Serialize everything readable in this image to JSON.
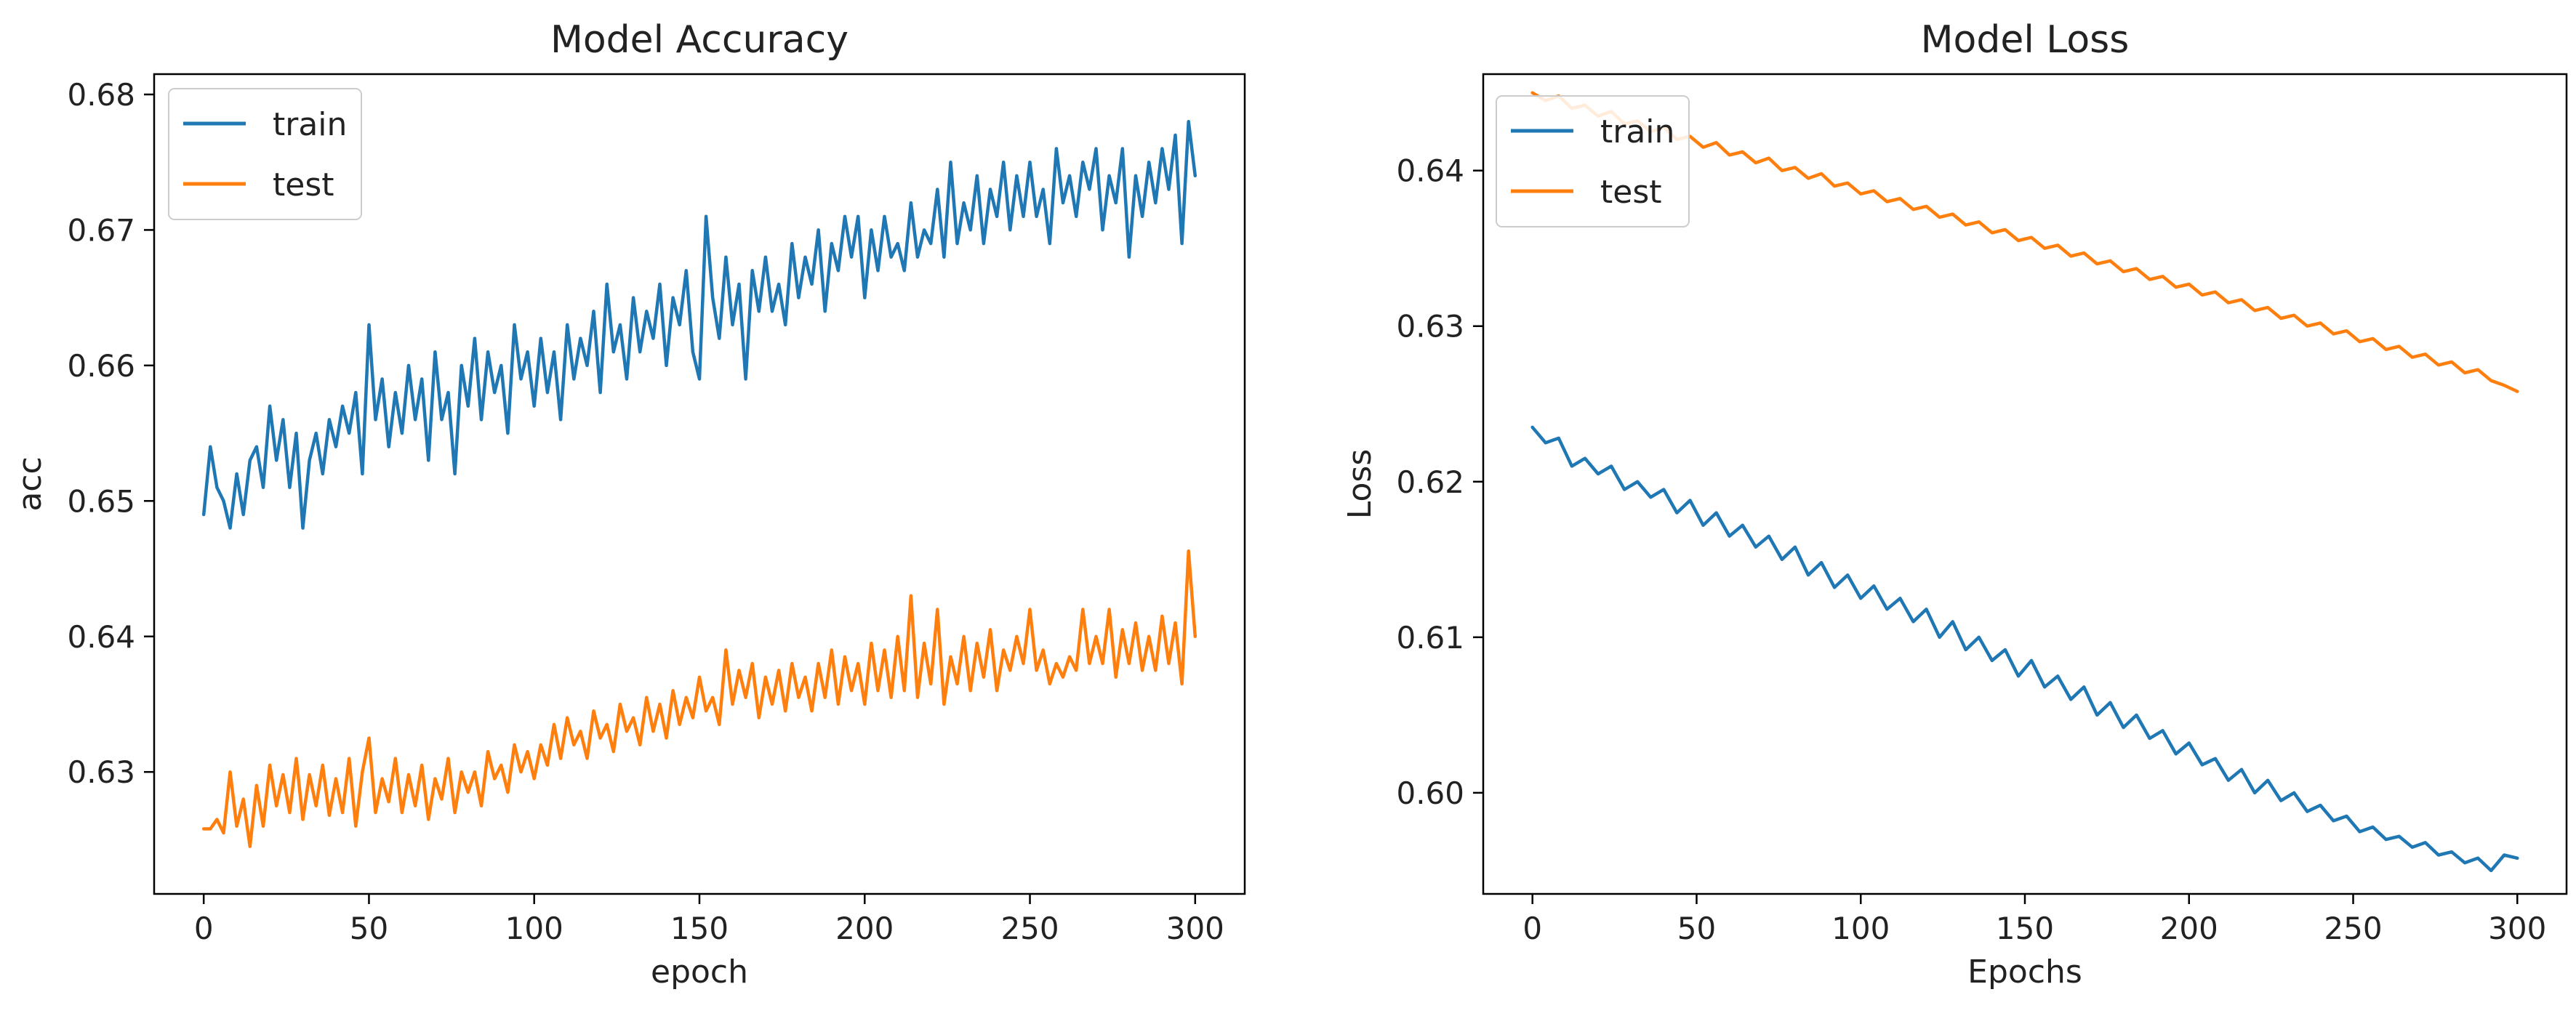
{
  "chart_data": [
    {
      "type": "line",
      "title": "Model Accuracy",
      "xlabel": "epoch",
      "ylabel": "acc",
      "xlim": [
        -15,
        315
      ],
      "ylim": [
        0.621,
        0.6815
      ],
      "xticks": [
        0,
        50,
        100,
        150,
        200,
        250,
        300
      ],
      "yticks": [
        0.63,
        0.64,
        0.65,
        0.66,
        0.67,
        0.68
      ],
      "ytick_labels": [
        "0.63",
        "0.64",
        "0.65",
        "0.66",
        "0.67",
        "0.68"
      ],
      "legend_position": "upper-left",
      "grid": false,
      "series": [
        {
          "name": "train",
          "color": "#1f77b4",
          "x": [
            0,
            2,
            4,
            6,
            8,
            10,
            12,
            14,
            16,
            18,
            20,
            22,
            24,
            26,
            28,
            30,
            32,
            34,
            36,
            38,
            40,
            42,
            44,
            46,
            48,
            50,
            52,
            54,
            56,
            58,
            60,
            62,
            64,
            66,
            68,
            70,
            72,
            74,
            76,
            78,
            80,
            82,
            84,
            86,
            88,
            90,
            92,
            94,
            96,
            98,
            100,
            102,
            104,
            106,
            108,
            110,
            112,
            114,
            116,
            118,
            120,
            122,
            124,
            126,
            128,
            130,
            132,
            134,
            136,
            138,
            140,
            142,
            144,
            146,
            148,
            150,
            152,
            154,
            156,
            158,
            160,
            162,
            164,
            166,
            168,
            170,
            172,
            174,
            176,
            178,
            180,
            182,
            184,
            186,
            188,
            190,
            192,
            194,
            196,
            198,
            200,
            202,
            204,
            206,
            208,
            210,
            212,
            214,
            216,
            218,
            220,
            222,
            224,
            226,
            228,
            230,
            232,
            234,
            236,
            238,
            240,
            242,
            244,
            246,
            248,
            250,
            252,
            254,
            256,
            258,
            260,
            262,
            264,
            266,
            268,
            270,
            272,
            274,
            276,
            278,
            280,
            282,
            284,
            286,
            288,
            290,
            292,
            294,
            296,
            298,
            300
          ],
          "y": [
            0.649,
            0.654,
            0.651,
            0.65,
            0.648,
            0.652,
            0.649,
            0.653,
            0.654,
            0.651,
            0.657,
            0.653,
            0.656,
            0.651,
            0.655,
            0.648,
            0.653,
            0.655,
            0.652,
            0.656,
            0.654,
            0.657,
            0.655,
            0.658,
            0.652,
            0.663,
            0.656,
            0.659,
            0.654,
            0.658,
            0.655,
            0.66,
            0.656,
            0.659,
            0.653,
            0.661,
            0.656,
            0.658,
            0.652,
            0.66,
            0.657,
            0.662,
            0.656,
            0.661,
            0.658,
            0.66,
            0.655,
            0.663,
            0.659,
            0.661,
            0.657,
            0.662,
            0.658,
            0.661,
            0.656,
            0.663,
            0.659,
            0.662,
            0.66,
            0.664,
            0.658,
            0.666,
            0.661,
            0.663,
            0.659,
            0.665,
            0.661,
            0.664,
            0.662,
            0.666,
            0.66,
            0.665,
            0.663,
            0.667,
            0.661,
            0.659,
            0.671,
            0.665,
            0.662,
            0.668,
            0.663,
            0.666,
            0.659,
            0.667,
            0.664,
            0.668,
            0.664,
            0.666,
            0.663,
            0.669,
            0.665,
            0.668,
            0.666,
            0.67,
            0.664,
            0.669,
            0.667,
            0.671,
            0.668,
            0.671,
            0.665,
            0.67,
            0.667,
            0.671,
            0.668,
            0.669,
            0.667,
            0.672,
            0.668,
            0.67,
            0.669,
            0.673,
            0.668,
            0.675,
            0.669,
            0.672,
            0.67,
            0.674,
            0.669,
            0.673,
            0.671,
            0.675,
            0.67,
            0.674,
            0.671,
            0.675,
            0.671,
            0.673,
            0.669,
            0.676,
            0.672,
            0.674,
            0.671,
            0.675,
            0.673,
            0.676,
            0.67,
            0.674,
            0.672,
            0.676,
            0.668,
            0.674,
            0.671,
            0.675,
            0.672,
            0.676,
            0.673,
            0.677,
            0.669,
            0.678,
            0.674
          ]
        },
        {
          "name": "test",
          "color": "#ff7f0e",
          "x": [
            0,
            2,
            4,
            6,
            8,
            10,
            12,
            14,
            16,
            18,
            20,
            22,
            24,
            26,
            28,
            30,
            32,
            34,
            36,
            38,
            40,
            42,
            44,
            46,
            48,
            50,
            52,
            54,
            56,
            58,
            60,
            62,
            64,
            66,
            68,
            70,
            72,
            74,
            76,
            78,
            80,
            82,
            84,
            86,
            88,
            90,
            92,
            94,
            96,
            98,
            100,
            102,
            104,
            106,
            108,
            110,
            112,
            114,
            116,
            118,
            120,
            122,
            124,
            126,
            128,
            130,
            132,
            134,
            136,
            138,
            140,
            142,
            144,
            146,
            148,
            150,
            152,
            154,
            156,
            158,
            160,
            162,
            164,
            166,
            168,
            170,
            172,
            174,
            176,
            178,
            180,
            182,
            184,
            186,
            188,
            190,
            192,
            194,
            196,
            198,
            200,
            202,
            204,
            206,
            208,
            210,
            212,
            214,
            216,
            218,
            220,
            222,
            224,
            226,
            228,
            230,
            232,
            234,
            236,
            238,
            240,
            242,
            244,
            246,
            248,
            250,
            252,
            254,
            256,
            258,
            260,
            262,
            264,
            266,
            268,
            270,
            272,
            274,
            276,
            278,
            280,
            282,
            284,
            286,
            288,
            290,
            292,
            294,
            296,
            298,
            300
          ],
          "y": [
            0.6258,
            0.6258,
            0.6265,
            0.6255,
            0.63,
            0.626,
            0.628,
            0.6245,
            0.629,
            0.626,
            0.6305,
            0.6275,
            0.6298,
            0.627,
            0.631,
            0.6265,
            0.6298,
            0.6275,
            0.6305,
            0.6268,
            0.6295,
            0.627,
            0.631,
            0.626,
            0.63,
            0.6325,
            0.627,
            0.6295,
            0.6278,
            0.631,
            0.627,
            0.6298,
            0.6275,
            0.6305,
            0.6265,
            0.6295,
            0.628,
            0.631,
            0.627,
            0.63,
            0.6285,
            0.63,
            0.6275,
            0.6315,
            0.6295,
            0.6305,
            0.6285,
            0.632,
            0.63,
            0.6315,
            0.6295,
            0.632,
            0.6305,
            0.6335,
            0.631,
            0.634,
            0.632,
            0.633,
            0.631,
            0.6345,
            0.6325,
            0.6335,
            0.6315,
            0.635,
            0.633,
            0.634,
            0.632,
            0.6355,
            0.633,
            0.635,
            0.6325,
            0.636,
            0.6335,
            0.6355,
            0.634,
            0.637,
            0.6345,
            0.6355,
            0.6335,
            0.639,
            0.635,
            0.6375,
            0.6355,
            0.638,
            0.634,
            0.637,
            0.635,
            0.6375,
            0.6345,
            0.638,
            0.6355,
            0.637,
            0.6345,
            0.638,
            0.6355,
            0.639,
            0.635,
            0.6385,
            0.636,
            0.638,
            0.635,
            0.6395,
            0.636,
            0.639,
            0.6355,
            0.64,
            0.636,
            0.643,
            0.6355,
            0.6395,
            0.6365,
            0.642,
            0.635,
            0.6385,
            0.6365,
            0.64,
            0.636,
            0.6395,
            0.637,
            0.6405,
            0.636,
            0.639,
            0.6375,
            0.64,
            0.638,
            0.642,
            0.6375,
            0.639,
            0.6365,
            0.638,
            0.637,
            0.6385,
            0.6375,
            0.642,
            0.638,
            0.64,
            0.638,
            0.642,
            0.637,
            0.6405,
            0.638,
            0.641,
            0.6375,
            0.64,
            0.6375,
            0.6415,
            0.638,
            0.641,
            0.6365,
            0.6463,
            0.64
          ]
        }
      ]
    },
    {
      "type": "line",
      "title": "Model Loss",
      "xlabel": "Epochs",
      "ylabel": "Loss",
      "xlim": [
        -15,
        315
      ],
      "ylim": [
        0.5935,
        0.6462
      ],
      "xticks": [
        0,
        50,
        100,
        150,
        200,
        250,
        300
      ],
      "yticks": [
        0.6,
        0.61,
        0.62,
        0.63,
        0.64
      ],
      "ytick_labels": [
        "0.60",
        "0.61",
        "0.62",
        "0.63",
        "0.64"
      ],
      "legend_position": "upper-left",
      "grid": false,
      "series": [
        {
          "name": "train",
          "color": "#1f77b4",
          "x": [
            0,
            4,
            8,
            12,
            16,
            20,
            24,
            28,
            32,
            36,
            40,
            44,
            48,
            52,
            56,
            60,
            64,
            68,
            72,
            76,
            80,
            84,
            88,
            92,
            96,
            100,
            104,
            108,
            112,
            116,
            120,
            124,
            128,
            132,
            136,
            140,
            144,
            148,
            152,
            156,
            160,
            164,
            168,
            172,
            176,
            180,
            184,
            188,
            192,
            196,
            200,
            204,
            208,
            212,
            216,
            220,
            224,
            228,
            232,
            236,
            240,
            244,
            248,
            252,
            256,
            260,
            264,
            268,
            272,
            276,
            280,
            284,
            288,
            292,
            296,
            300
          ],
          "y": [
            0.6235,
            0.6225,
            0.6228,
            0.621,
            0.6215,
            0.6205,
            0.621,
            0.6195,
            0.62,
            0.619,
            0.6195,
            0.618,
            0.6188,
            0.6172,
            0.618,
            0.6165,
            0.6172,
            0.6158,
            0.6165,
            0.615,
            0.6158,
            0.614,
            0.6148,
            0.6132,
            0.614,
            0.6125,
            0.6133,
            0.6118,
            0.6125,
            0.611,
            0.6118,
            0.61,
            0.611,
            0.6092,
            0.61,
            0.6085,
            0.6092,
            0.6075,
            0.6085,
            0.6068,
            0.6075,
            0.606,
            0.6068,
            0.605,
            0.6058,
            0.6042,
            0.605,
            0.6035,
            0.604,
            0.6025,
            0.6032,
            0.6018,
            0.6022,
            0.6008,
            0.6015,
            0.6,
            0.6008,
            0.5995,
            0.6,
            0.5988,
            0.5992,
            0.5982,
            0.5985,
            0.5975,
            0.5978,
            0.597,
            0.5972,
            0.5965,
            0.5968,
            0.596,
            0.5962,
            0.5955,
            0.5958,
            0.595,
            0.596,
            0.5958
          ]
        },
        {
          "name": "test",
          "color": "#ff7f0e",
          "x": [
            0,
            4,
            8,
            12,
            16,
            20,
            24,
            28,
            32,
            36,
            40,
            44,
            48,
            52,
            56,
            60,
            64,
            68,
            72,
            76,
            80,
            84,
            88,
            92,
            96,
            100,
            104,
            108,
            112,
            116,
            120,
            124,
            128,
            132,
            136,
            140,
            144,
            148,
            152,
            156,
            160,
            164,
            168,
            172,
            176,
            180,
            184,
            188,
            192,
            196,
            200,
            204,
            208,
            212,
            216,
            220,
            224,
            228,
            232,
            236,
            240,
            244,
            248,
            252,
            256,
            260,
            264,
            268,
            272,
            276,
            280,
            284,
            288,
            292,
            296,
            300
          ],
          "y": [
            0.645,
            0.6445,
            0.6448,
            0.644,
            0.6442,
            0.6435,
            0.6438,
            0.643,
            0.6432,
            0.6425,
            0.6428,
            0.642,
            0.6422,
            0.6415,
            0.6418,
            0.641,
            0.6412,
            0.6405,
            0.6408,
            0.64,
            0.6402,
            0.6395,
            0.6398,
            0.639,
            0.6392,
            0.6385,
            0.6387,
            0.638,
            0.6382,
            0.6375,
            0.6377,
            0.637,
            0.6372,
            0.6365,
            0.6367,
            0.636,
            0.6362,
            0.6355,
            0.6357,
            0.635,
            0.6352,
            0.6345,
            0.6347,
            0.634,
            0.6342,
            0.6335,
            0.6337,
            0.633,
            0.6332,
            0.6325,
            0.6327,
            0.632,
            0.6322,
            0.6315,
            0.6317,
            0.631,
            0.6312,
            0.6305,
            0.6307,
            0.63,
            0.6302,
            0.6295,
            0.6297,
            0.629,
            0.6292,
            0.6285,
            0.6287,
            0.628,
            0.6282,
            0.6275,
            0.6277,
            0.627,
            0.6272,
            0.6265,
            0.6262,
            0.6258
          ]
        }
      ]
    }
  ]
}
